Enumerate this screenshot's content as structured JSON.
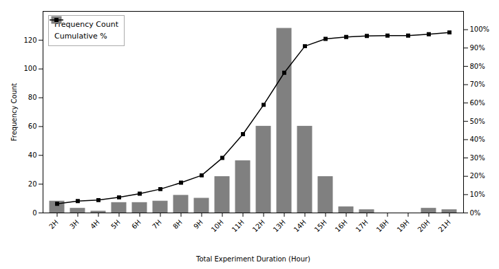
{
  "chart_data": {
    "type": "bar",
    "xlabel": "Total Experiment Duration (Hour)",
    "ylabel": "Frequency Count",
    "categories": [
      "2H",
      "3H",
      "4H",
      "5H",
      "6H",
      "7H",
      "8H",
      "9H",
      "10H",
      "11H",
      "12H",
      "13H",
      "14H",
      "15H",
      "16H",
      "17H",
      "18H",
      "19H",
      "20H",
      "21H"
    ],
    "series": [
      {
        "name": "Frequency Count",
        "type": "bar",
        "color": "#808080",
        "values": [
          8,
          3,
          1,
          7,
          7,
          8,
          12,
          10,
          25,
          36,
          60,
          128,
          60,
          25,
          4,
          2,
          0,
          0,
          3,
          2
        ]
      },
      {
        "name": "Cumulative %",
        "type": "line",
        "axis": "y2",
        "color": "#000000",
        "marker": "square",
        "values": [
          5.0,
          6.5,
          7.0,
          8.5,
          10.5,
          13.0,
          16.5,
          20.5,
          30.0,
          43.0,
          59.0,
          76.5,
          91.0,
          95.0,
          96.0,
          96.6,
          96.8,
          96.8,
          97.5,
          98.5
        ]
      }
    ],
    "ylim": [
      0,
      140
    ],
    "yticks": [
      0,
      20,
      40,
      60,
      80,
      100,
      120
    ],
    "y2lim": [
      0,
      110
    ],
    "y2ticks": [
      {
        "value": 0,
        "label": "0%"
      },
      {
        "value": 10,
        "label": "10%"
      },
      {
        "value": 20,
        "label": "20%"
      },
      {
        "value": 30,
        "label": "30%"
      },
      {
        "value": 40,
        "label": "40%"
      },
      {
        "value": 50,
        "label": "50%"
      },
      {
        "value": 60,
        "label": "60%"
      },
      {
        "value": 70,
        "label": "70%"
      },
      {
        "value": 80,
        "label": "80%"
      },
      {
        "value": 90,
        "label": "90%"
      },
      {
        "value": 100,
        "label": "100%"
      }
    ],
    "legend": "upper left"
  }
}
